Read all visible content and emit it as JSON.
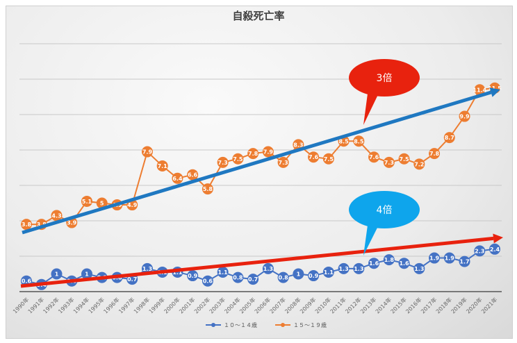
{
  "chart_data": {
    "type": "line",
    "title": "自殺死亡率",
    "categories": [
      "1990年",
      "1991年",
      "1992年",
      "1993年",
      "1994年",
      "1995年",
      "1996年",
      "1997年",
      "1998年",
      "1999年",
      "2000年",
      "2001年",
      "2002年",
      "2003年",
      "2004年",
      "2005年",
      "2006年",
      "2007年",
      "2008年",
      "2009年",
      "2010年",
      "2011年",
      "2012年",
      "2013年",
      "2014年",
      "2015年",
      "2016年",
      "2017年",
      "2018年",
      "2019年",
      "2020年",
      "2021年"
    ],
    "series": [
      {
        "name": "１０～１４歳",
        "color": "#4472c4",
        "values": [
          0.6,
          0.4,
          1,
          0.6,
          1,
          0.8,
          0.8,
          0.7,
          1.3,
          1.1,
          1.1,
          0.9,
          0.6,
          1.1,
          0.8,
          0.7,
          1.3,
          0.8,
          1,
          0.9,
          1.1,
          1.3,
          1.3,
          1.6,
          1.8,
          1.6,
          1.3,
          1.9,
          1.9,
          1.7,
          2.3,
          2.4
        ]
      },
      {
        "name": "１５～１９歳",
        "color": "#ed7d31",
        "values": [
          3.8,
          3.8,
          4.3,
          3.9,
          5.1,
          5,
          4.9,
          4.9,
          7.9,
          7.1,
          6.4,
          6.6,
          5.8,
          7.3,
          7.5,
          7.8,
          7.9,
          7.3,
          8.3,
          7.6,
          7.5,
          8.5,
          8.5,
          7.6,
          7.3,
          7.5,
          7.2,
          7.8,
          8.7,
          9.9,
          11.4,
          11.5
        ]
      }
    ],
    "ylim": [
      0,
      14
    ],
    "grid": true,
    "legend": "bottom",
    "annotations": [
      {
        "text": "3倍",
        "color": "#e8220e",
        "arrow_color": "#1f78c1"
      },
      {
        "text": "4倍",
        "color": "#0ea5ec",
        "arrow_color": "#e8220e"
      }
    ]
  }
}
